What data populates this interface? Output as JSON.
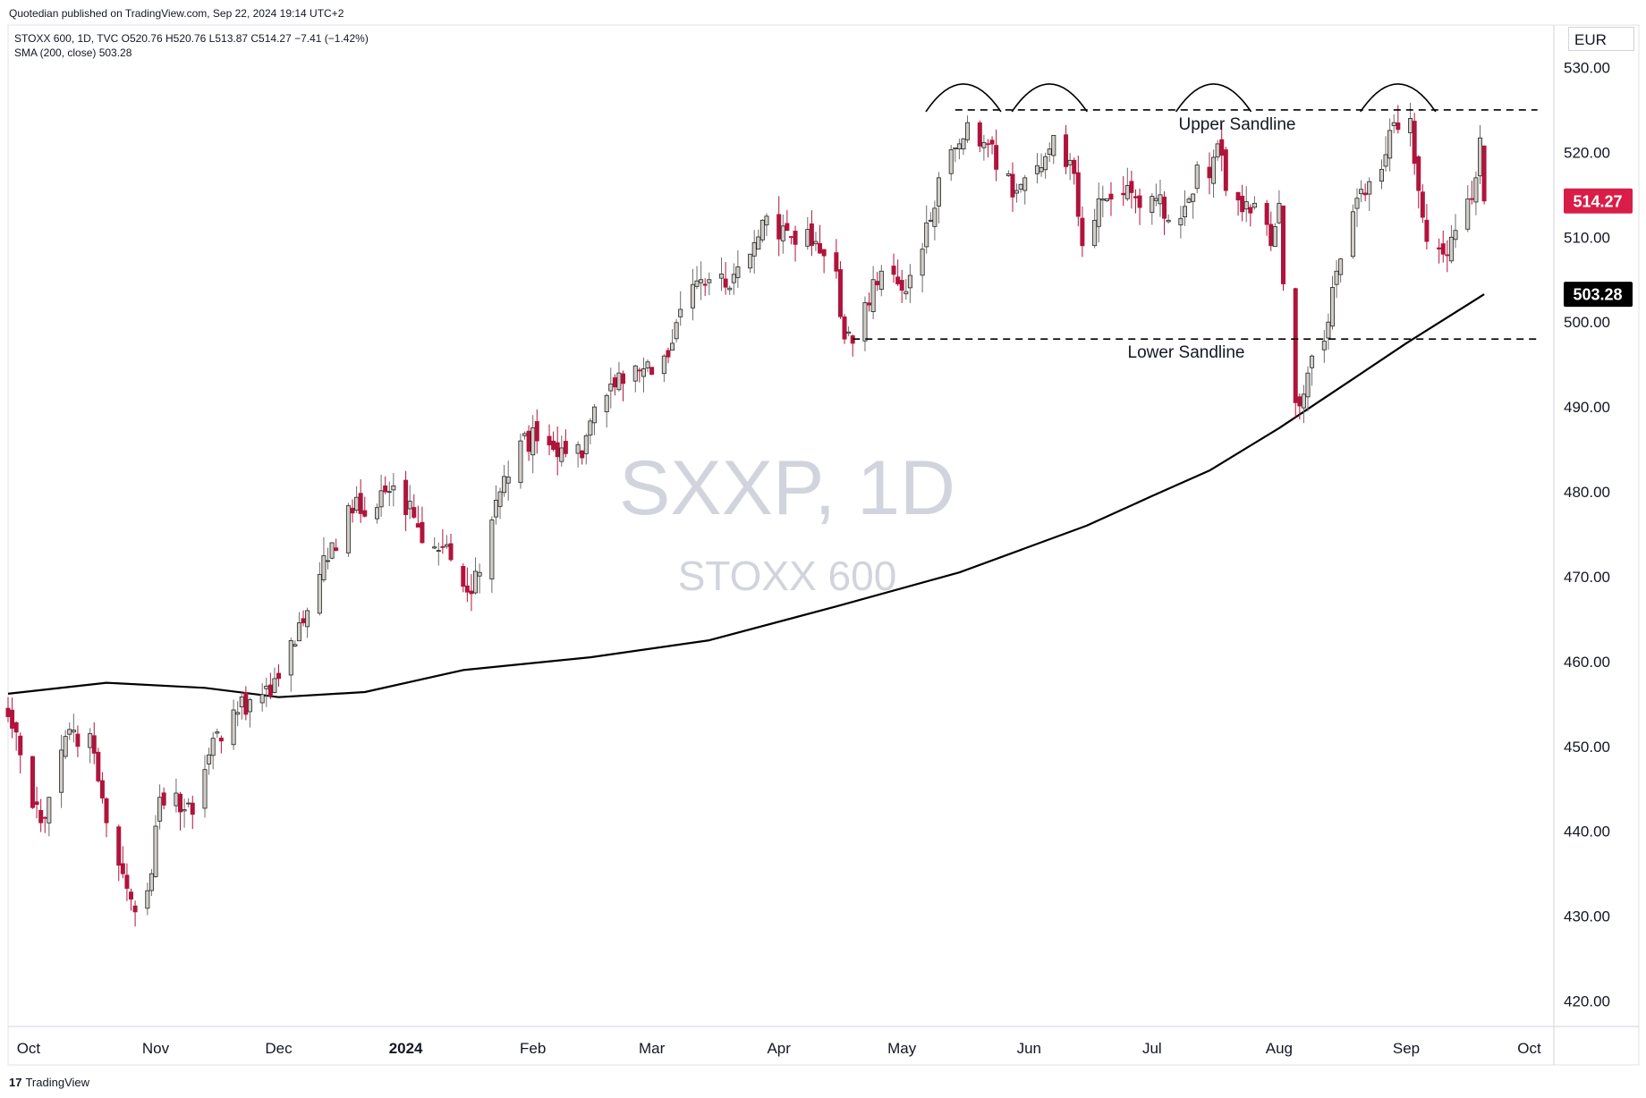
{
  "header": {
    "published": "Quotedian published on TradingView.com, Sep 22, 2024 19:14 UTC+2",
    "legend_line1": "STOXX 600, 1D, TVC  O520.76  H520.76  L513.87  C514.27  −7.41 (−1.42%)",
    "legend_line2": "SMA (200, close)  503.28"
  },
  "currency": "EUR",
  "watermark": {
    "symbol": "SXXP, 1D",
    "name": "STOXX 600"
  },
  "footer": {
    "brand": "TradingView",
    "logo_mark": "17"
  },
  "annotations": {
    "upper_label": "Upper Sandline",
    "lower_label": "Lower Sandline"
  },
  "colors": {
    "up_fill": "#d1cdc8",
    "down_fill": "#b0143c",
    "last_price_tag": "#d81e48",
    "sma_tag": "#000000",
    "sma_line": "#000000"
  },
  "chart_data": {
    "type": "candlestick",
    "symbol": "STOXX 600",
    "interval": "1D",
    "currency": "EUR",
    "ylim": [
      417,
      535
    ],
    "y_ticks": [
      "530.00",
      "520.00",
      "510.00",
      "500.00",
      "490.00",
      "480.00",
      "470.00",
      "460.00",
      "450.00",
      "440.00",
      "430.00",
      "420.00"
    ],
    "x_ticks": [
      "Oct",
      "Nov",
      "Dec",
      "2024",
      "Feb",
      "Mar",
      "Apr",
      "May",
      "Jun",
      "Jul",
      "Aug",
      "Sep",
      "Oct"
    ],
    "x_start": "2023-09-26",
    "x_end": "2024-10-07",
    "last_date": "2024-09-20",
    "ohlc_last": {
      "open": 520.76,
      "high": 520.76,
      "low": 513.87,
      "close": 514.27,
      "change": -7.41,
      "change_pct": -1.42
    },
    "close_anchors": [
      [
        "2023-09-26",
        453.5
      ],
      [
        "2023-09-29",
        449.0
      ],
      [
        "2023-10-04",
        441.0
      ],
      [
        "2023-10-06",
        444.0
      ],
      [
        "2023-10-11",
        452.0
      ],
      [
        "2023-10-13",
        450.0
      ],
      [
        "2023-10-16",
        451.5
      ],
      [
        "2023-10-20",
        441.0
      ],
      [
        "2023-10-23",
        436.0
      ],
      [
        "2023-10-26",
        432.0
      ],
      [
        "2023-10-27",
        430.5
      ],
      [
        "2023-10-30",
        433.0
      ],
      [
        "2023-10-31",
        435.0
      ],
      [
        "2023-11-02",
        444.0
      ],
      [
        "2023-11-06",
        444.5
      ],
      [
        "2023-11-10",
        442.0
      ],
      [
        "2023-11-14",
        449.0
      ],
      [
        "2023-11-21",
        454.0
      ],
      [
        "2023-11-24",
        455.5
      ],
      [
        "2023-12-01",
        458.0
      ],
      [
        "2023-12-08",
        466.0
      ],
      [
        "2023-12-14",
        474.0
      ],
      [
        "2023-12-19",
        477.5
      ],
      [
        "2023-12-27",
        480.0
      ],
      [
        "2024-01-03",
        477.0
      ],
      [
        "2024-01-05",
        474.0
      ],
      [
        "2024-01-10",
        473.5
      ],
      [
        "2024-01-12",
        472.0
      ],
      [
        "2024-01-17",
        468.0
      ],
      [
        "2024-01-19",
        470.5
      ],
      [
        "2024-01-24",
        480.0
      ],
      [
        "2024-01-29",
        486.0
      ],
      [
        "2024-02-02",
        486.0
      ],
      [
        "2024-02-06",
        485.0
      ],
      [
        "2024-02-09",
        484.5
      ],
      [
        "2024-02-13",
        484.0
      ],
      [
        "2024-02-16",
        490.0
      ],
      [
        "2024-02-22",
        494.0
      ],
      [
        "2024-02-28",
        494.5
      ],
      [
        "2024-03-04",
        496.0
      ],
      [
        "2024-03-08",
        501.5
      ],
      [
        "2024-03-13",
        505.0
      ],
      [
        "2024-03-15",
        505.0
      ],
      [
        "2024-03-20",
        504.0
      ],
      [
        "2024-03-25",
        508.0
      ],
      [
        "2024-03-28",
        512.0
      ],
      [
        "2024-04-04",
        510.0
      ],
      [
        "2024-04-10",
        509.5
      ],
      [
        "2024-04-15",
        506.0
      ],
      [
        "2024-04-17",
        498.0
      ],
      [
        "2024-04-19",
        497.5
      ],
      [
        "2024-04-24",
        505.0
      ],
      [
        "2024-04-26",
        506.0
      ],
      [
        "2024-04-30",
        504.5
      ],
      [
        "2024-05-03",
        505.5
      ],
      [
        "2024-05-08",
        512.0
      ],
      [
        "2024-05-10",
        517.0
      ],
      [
        "2024-05-15",
        521.0
      ],
      [
        "2024-05-17",
        523.5
      ],
      [
        "2024-05-22",
        521.0
      ],
      [
        "2024-05-24",
        518.0
      ],
      [
        "2024-05-29",
        515.5
      ],
      [
        "2024-05-31",
        517.0
      ],
      [
        "2024-06-05",
        519.5
      ],
      [
        "2024-06-07",
        522.0
      ],
      [
        "2024-06-12",
        517.5
      ],
      [
        "2024-06-14",
        509.0
      ],
      [
        "2024-06-19",
        514.5
      ],
      [
        "2024-06-24",
        515.0
      ],
      [
        "2024-06-28",
        513.5
      ],
      [
        "2024-07-03",
        515.0
      ],
      [
        "2024-07-05",
        512.0
      ],
      [
        "2024-07-10",
        514.5
      ],
      [
        "2024-07-12",
        518.5
      ],
      [
        "2024-07-15",
        517.0
      ],
      [
        "2024-07-17",
        521.0
      ],
      [
        "2024-07-19",
        515.5
      ],
      [
        "2024-07-23",
        513.0
      ],
      [
        "2024-07-26",
        514.0
      ],
      [
        "2024-07-30",
        509.0
      ],
      [
        "2024-08-01",
        514.0
      ],
      [
        "2024-08-02",
        504.5
      ],
      [
        "2024-08-05",
        490.5
      ],
      [
        "2024-08-07",
        491.5
      ],
      [
        "2024-08-09",
        496.0
      ],
      [
        "2024-08-13",
        500.0
      ],
      [
        "2024-08-15",
        506.0
      ],
      [
        "2024-08-19",
        513.0
      ],
      [
        "2024-08-22",
        515.0
      ],
      [
        "2024-08-26",
        518.0
      ],
      [
        "2024-08-29",
        523.5
      ],
      [
        "2024-09-02",
        524.0
      ],
      [
        "2024-09-04",
        515.5
      ],
      [
        "2024-09-06",
        509.5
      ],
      [
        "2024-09-10",
        508.0
      ],
      [
        "2024-09-12",
        510.0
      ],
      [
        "2024-09-16",
        514.5
      ],
      [
        "2024-09-18",
        517.0
      ],
      [
        "2024-09-19",
        521.7
      ],
      [
        "2024-09-20",
        514.27
      ]
    ],
    "sma200": {
      "name": "SMA (200, close)",
      "last": 503.28,
      "points": [
        [
          "2023-09-26",
          456.2
        ],
        [
          "2023-10-20",
          457.5
        ],
        [
          "2023-11-13",
          456.9
        ],
        [
          "2023-12-01",
          455.8
        ],
        [
          "2023-12-22",
          456.4
        ],
        [
          "2024-01-15",
          459.0
        ],
        [
          "2024-02-15",
          460.5
        ],
        [
          "2024-03-15",
          462.5
        ],
        [
          "2024-04-15",
          466.5
        ],
        [
          "2024-05-15",
          470.5
        ],
        [
          "2024-06-15",
          476.0
        ],
        [
          "2024-07-01",
          479.5
        ],
        [
          "2024-07-15",
          482.5
        ],
        [
          "2024-08-01",
          487.5
        ],
        [
          "2024-08-15",
          492.0
        ],
        [
          "2024-09-01",
          497.5
        ],
        [
          "2024-09-20",
          503.28
        ]
      ]
    },
    "levels": [
      {
        "name": "Upper Sandline",
        "value": 525.0,
        "from": "2024-05-14",
        "to": "2024-10-03"
      },
      {
        "name": "Lower Sandline",
        "value": 498.0,
        "from": "2024-04-19",
        "to": "2024-10-03"
      }
    ],
    "tops": [
      "2024-05-16",
      "2024-06-06",
      "2024-07-16",
      "2024-08-30"
    ],
    "price_tags": [
      {
        "label": "514.27",
        "value": 514.27
      },
      {
        "label": "503.28",
        "value": 503.28
      }
    ]
  }
}
